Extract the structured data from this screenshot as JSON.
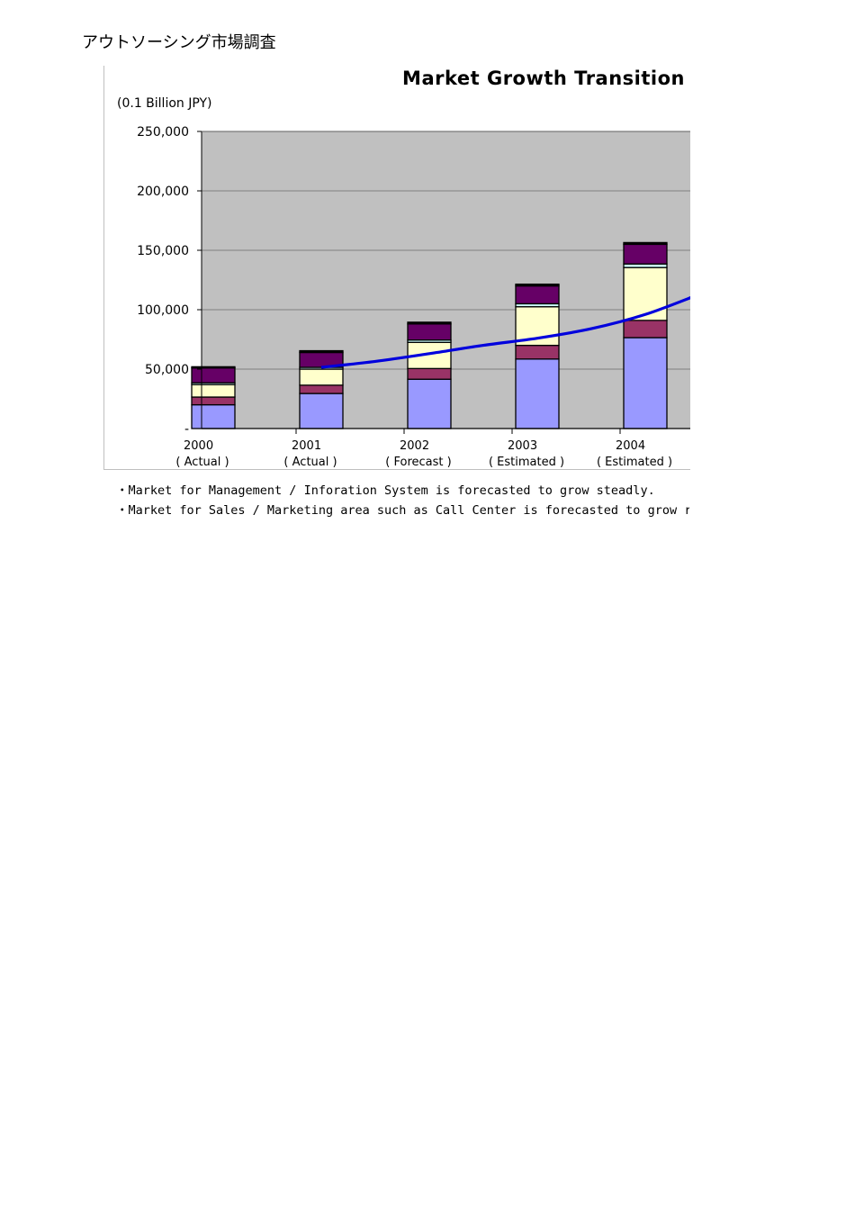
{
  "page": {
    "header": "アウトソーシング市場調査"
  },
  "chart_data": {
    "type": "bar",
    "stacked": true,
    "title": "Market Growth Transition",
    "ylabel": "(0.1 Billion JPY)",
    "xlabel": "",
    "categories": [
      "2000",
      "2001",
      "2002",
      "2003",
      "2004"
    ],
    "category_sublabels": [
      "( Actual )",
      "( Actual )",
      "( Forecast )",
      "( Estimated )",
      "( Estimated )"
    ],
    "ylim": [
      0,
      250000
    ],
    "yticks": [
      0,
      50000,
      100000,
      150000,
      200000,
      250000
    ],
    "ytick_labels": [
      "-",
      "50,000",
      "100,000",
      "150,000",
      "200,000",
      "250,000"
    ],
    "grid": true,
    "plot_background": "#c0c0c0",
    "series": [
      {
        "color": "#9999ff",
        "values": [
          20000,
          29500,
          41500,
          58500,
          76500
        ]
      },
      {
        "color": "#993366",
        "values": [
          6500,
          7000,
          9000,
          11500,
          14500
        ]
      },
      {
        "color": "#ffffcc",
        "values": [
          10500,
          13500,
          22000,
          32500,
          44500
        ]
      },
      {
        "color": "#ccffff",
        "values": [
          1500,
          1500,
          2000,
          2500,
          3000
        ]
      },
      {
        "color": "#660066",
        "values": [
          12500,
          12500,
          13500,
          15000,
          16500
        ]
      },
      {
        "color": "#000000",
        "values": [
          1000,
          1500,
          1500,
          1500,
          1500
        ]
      }
    ],
    "trend_line": {
      "color": "#0000dd",
      "x": [
        1,
        1.5,
        2,
        2.5,
        3,
        3.5,
        4,
        4.5
      ],
      "y": [
        51500,
        56500,
        63000,
        70000,
        76000,
        84000,
        96000,
        113000
      ]
    }
  },
  "notes": [
    "・Market for Management / Inforation System is forecasted to grow steadly.",
    "・Market for Sales / Marketing area such as Call Center is forecasted to grow rapidly."
  ]
}
